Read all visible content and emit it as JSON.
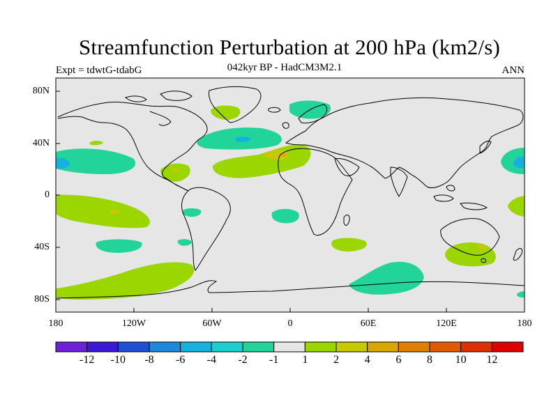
{
  "title": "Streamfunction Perturbation at 200 hPa (km2/s)",
  "left_label": "Expt = tdwtG-tdabG",
  "center_label": "042kyr BP - HadCM3M2.1",
  "right_label": "ANN",
  "lat_labels": [
    "80N",
    "40N",
    "0",
    "40S",
    "80S"
  ],
  "lon_labels": [
    "180",
    "120W",
    "60W",
    "0",
    "60E",
    "120E",
    "180"
  ],
  "colorbar": {
    "colors": [
      "#6e1fd8",
      "#3b18d6",
      "#1f4fd2",
      "#1e88dc",
      "#14b2dc",
      "#1ccfcf",
      "#22d49a",
      "#e6e6e6",
      "#9cd600",
      "#c8c800",
      "#d8a800",
      "#e08000",
      "#e05a00",
      "#dc3000",
      "#dc0000"
    ],
    "labels": [
      "-12",
      "-10",
      "-8",
      "-6",
      "-4",
      "-2",
      "-1",
      "1",
      "2",
      "4",
      "6",
      "8",
      "10",
      "12"
    ]
  },
  "field_colors": {
    "background": "#e6e6e6",
    "neg1": "#22d49a",
    "neg2": "#14b2dc",
    "pos1": "#9cd600",
    "pos2": "#c8c800",
    "pos3": "#d8a800"
  }
}
